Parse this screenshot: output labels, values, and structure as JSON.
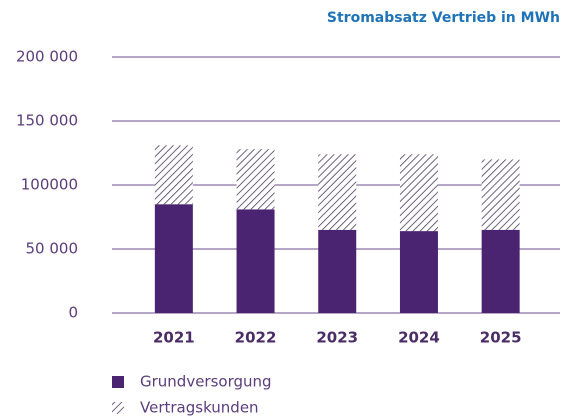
{
  "chart_data": {
    "type": "stacked_bar",
    "title": "Stromabsatz Vertrieb in MWh",
    "categories": [
      "2021",
      "2022",
      "2023",
      "2024",
      "2025"
    ],
    "series": [
      {
        "name": "Grundversorgung",
        "color": "#4a2470",
        "pattern": "solid",
        "values": [
          85000,
          81000,
          65000,
          64000,
          65000
        ]
      },
      {
        "name": "Vertragskunden",
        "color": "#4a3a5c",
        "pattern": "hatch",
        "values": [
          46000,
          47000,
          59000,
          60000,
          55000
        ]
      }
    ],
    "ylim": [
      0,
      200000
    ],
    "yticks": [
      0,
      {
        "value": 50000,
        "label": "50 000"
      },
      100000,
      {
        "value": 150000,
        "label": "150 000"
      },
      {
        "value": 200000,
        "label": "200 000"
      }
    ],
    "grid": true,
    "legend": "bottom-left"
  }
}
